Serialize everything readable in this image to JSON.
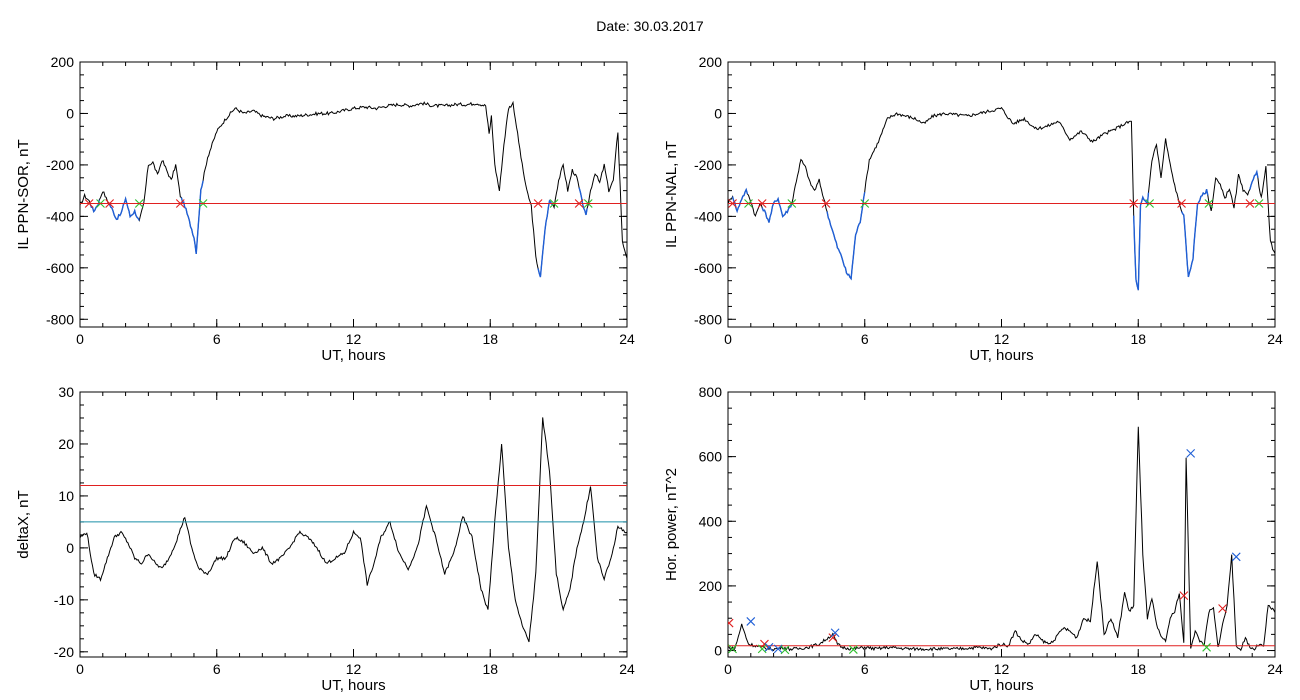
{
  "header": {
    "date_label": "Date:",
    "date_value": "30.03.2017"
  },
  "colors": {
    "axis": "#000000",
    "trace": "#000000",
    "event_trace": "#1f5fd6",
    "threshold_red": "#e02020",
    "threshold_cyan": "#1a8fa8",
    "marker_red": "#e02020",
    "marker_green": "#2fbf2f",
    "marker_blue": "#1f5fd6"
  },
  "chart_data": [
    {
      "id": "sor",
      "type": "line",
      "xlabel": "UT, hours",
      "ylabel": "IL PPN-SOR, nT",
      "xlim": [
        0,
        24
      ],
      "ylim": [
        -830,
        200
      ],
      "xticks": [
        0,
        6,
        12,
        18,
        24
      ],
      "yticks": [
        -800,
        -600,
        -400,
        -200,
        0,
        200
      ],
      "threshold": -350,
      "event_intervals": [
        [
          0.4,
          0.9
        ],
        [
          1.3,
          2.6
        ],
        [
          4.4,
          5.4
        ],
        [
          20.1,
          20.8
        ],
        [
          21.9,
          22.3
        ]
      ],
      "series": [
        {
          "x": [
            0,
            0.2,
            0.4,
            0.6,
            0.8,
            1,
            1.2,
            1.4,
            1.6,
            1.8,
            2,
            2.2,
            2.4,
            2.6,
            2.8,
            3,
            3.2,
            3.4,
            3.6,
            3.8,
            4,
            4.2,
            4.4,
            4.6,
            4.8,
            5,
            5.1,
            5.3,
            5.6,
            6,
            6.4,
            6.8,
            7.2,
            7.6,
            8,
            8.5,
            9,
            9.5,
            10,
            10.5,
            11,
            11.5,
            12,
            12.5,
            13,
            13.5,
            14,
            14.5,
            15,
            15.5,
            16,
            16.5,
            17,
            17.4,
            17.8,
            17.95,
            18.05,
            18.2,
            18.4,
            18.6,
            18.8,
            19,
            19.2,
            19.4,
            19.6,
            19.8,
            20,
            20.2,
            20.4,
            20.6,
            20.8,
            21,
            21.2,
            21.4,
            21.6,
            21.8,
            22,
            22.2,
            22.4,
            22.6,
            22.8,
            23,
            23.2,
            23.4,
            23.6,
            23.8,
            24
          ],
          "y": [
            -360,
            -320,
            -340,
            -380,
            -350,
            -300,
            -340,
            -370,
            -410,
            -390,
            -330,
            -400,
            -380,
            -420,
            -350,
            -200,
            -190,
            -240,
            -180,
            -220,
            -260,
            -200,
            -320,
            -360,
            -420,
            -480,
            -540,
            -300,
            -170,
            -70,
            -20,
            20,
            0,
            10,
            -10,
            -20,
            -10,
            -10,
            -5,
            0,
            0,
            10,
            20,
            25,
            20,
            30,
            35,
            30,
            40,
            30,
            30,
            35,
            35,
            40,
            30,
            -80,
            -10,
            -200,
            -300,
            -120,
            20,
            40,
            -80,
            -200,
            -300,
            -360,
            -560,
            -640,
            -450,
            -340,
            -360,
            -260,
            -200,
            -300,
            -220,
            -250,
            -330,
            -400,
            -300,
            -230,
            -270,
            -200,
            -300,
            -260,
            -70,
            -500,
            -560
          ]
        }
      ]
    },
    {
      "id": "nal",
      "type": "line",
      "xlabel": "UT, hours",
      "ylabel": "IL PPN-NAL, nT",
      "xlim": [
        0,
        24
      ],
      "ylim": [
        -830,
        200
      ],
      "xticks": [
        0,
        6,
        12,
        18,
        24
      ],
      "yticks": [
        -800,
        -600,
        -400,
        -200,
        0,
        200
      ],
      "threshold": -350,
      "event_intervals": [
        [
          0.2,
          0.9
        ],
        [
          1.5,
          2.8
        ],
        [
          4.3,
          6.0
        ],
        [
          17.8,
          18.5
        ],
        [
          19.9,
          21.1
        ],
        [
          22.9,
          23.3
        ]
      ],
      "series": [
        {
          "x": [
            0,
            0.2,
            0.4,
            0.6,
            0.8,
            1,
            1.2,
            1.4,
            1.6,
            1.8,
            2,
            2.2,
            2.4,
            2.6,
            2.8,
            3,
            3.2,
            3.4,
            3.6,
            3.8,
            4,
            4.2,
            4.4,
            4.6,
            4.8,
            5,
            5.2,
            5.4,
            5.6,
            5.8,
            6,
            6.2,
            6.6,
            7,
            7.4,
            7.8,
            8.2,
            8.6,
            9,
            9.5,
            10,
            10.5,
            11,
            11.5,
            12,
            12.5,
            13,
            13.5,
            14,
            14.5,
            15,
            15.5,
            16,
            16.5,
            17,
            17.4,
            17.7,
            17.8,
            17.9,
            18,
            18.1,
            18.2,
            18.4,
            18.6,
            18.8,
            19,
            19.2,
            19.4,
            19.6,
            19.8,
            20,
            20.2,
            20.4,
            20.6,
            20.8,
            21,
            21.2,
            21.4,
            21.6,
            21.8,
            22,
            22.2,
            22.4,
            22.6,
            22.8,
            23,
            23.2,
            23.4,
            23.6,
            23.8,
            24
          ],
          "y": [
            -350,
            -320,
            -380,
            -330,
            -300,
            -340,
            -400,
            -350,
            -380,
            -420,
            -350,
            -330,
            -400,
            -380,
            -350,
            -260,
            -180,
            -210,
            -270,
            -300,
            -260,
            -330,
            -400,
            -460,
            -520,
            -560,
            -620,
            -640,
            -470,
            -420,
            -300,
            -180,
            -110,
            -20,
            0,
            -10,
            -20,
            -40,
            -10,
            0,
            -5,
            -10,
            0,
            10,
            20,
            -40,
            -20,
            -60,
            -50,
            -30,
            -100,
            -70,
            -110,
            -80,
            -60,
            -40,
            -30,
            -400,
            -650,
            -690,
            -360,
            -330,
            -350,
            -180,
            -120,
            -250,
            -100,
            -200,
            -280,
            -350,
            -400,
            -640,
            -560,
            -350,
            -320,
            -300,
            -380,
            -250,
            -280,
            -330,
            -290,
            -370,
            -240,
            -300,
            -320,
            -260,
            -230,
            -330,
            -210,
            -500,
            -550
          ]
        }
      ]
    },
    {
      "id": "deltax",
      "type": "line",
      "xlabel": "UT, hours",
      "ylabel": "deltaX, nT",
      "xlim": [
        0,
        24
      ],
      "ylim": [
        -21,
        30
      ],
      "xticks": [
        0,
        6,
        12,
        18,
        24
      ],
      "yticks": [
        -20,
        -10,
        0,
        10,
        20,
        30
      ],
      "thresholds": [
        12,
        5
      ],
      "series": [
        {
          "x": [
            0,
            0.3,
            0.6,
            0.9,
            1.2,
            1.5,
            1.8,
            2.1,
            2.4,
            2.7,
            3,
            3.3,
            3.6,
            3.9,
            4.2,
            4.6,
            4.9,
            5.2,
            5.6,
            6,
            6.4,
            6.8,
            7.2,
            7.6,
            8,
            8.4,
            8.8,
            9.2,
            9.6,
            10,
            10.4,
            10.8,
            11.2,
            11.6,
            12,
            12.3,
            12.6,
            12.9,
            13.2,
            13.6,
            14,
            14.4,
            14.8,
            15.2,
            15.6,
            16,
            16.4,
            16.8,
            17.2,
            17.6,
            17.9,
            18.2,
            18.5,
            18.8,
            19.1,
            19.4,
            19.7,
            20,
            20.3,
            20.6,
            20.9,
            21.2,
            21.5,
            21.8,
            22.1,
            22.4,
            22.7,
            23,
            23.3,
            23.6,
            24
          ],
          "y": [
            2,
            3,
            -5,
            -6,
            -2,
            2,
            3,
            1,
            -2,
            -3,
            -1,
            -3,
            -4,
            -2,
            1,
            6,
            0,
            -4,
            -5,
            -2,
            -2,
            2,
            1,
            -1,
            0,
            -3,
            -2,
            0,
            3,
            2,
            0,
            -3,
            -2,
            -1,
            3,
            2,
            -7,
            -3,
            2,
            5,
            -1,
            -4,
            0,
            8,
            2,
            -5,
            -1,
            6,
            2,
            -8,
            -12,
            5,
            20,
            0,
            -10,
            -15,
            -18,
            -5,
            25,
            15,
            -5,
            -12,
            -8,
            0,
            5,
            12,
            -2,
            -6,
            -2,
            4,
            3
          ]
        }
      ]
    },
    {
      "id": "horpower",
      "type": "line",
      "xlabel": "UT, hours",
      "ylabel": "Hor. power, nT^2",
      "xlim": [
        0,
        24
      ],
      "ylim": [
        -20,
        800
      ],
      "xticks": [
        0,
        6,
        12,
        18,
        24
      ],
      "yticks": [
        0,
        200,
        400,
        600,
        800
      ],
      "threshold": 15,
      "series": [
        {
          "x": [
            0,
            0.3,
            0.6,
            0.9,
            1.2,
            1.5,
            1.8,
            2.1,
            2.4,
            2.7,
            3,
            3.5,
            4,
            4.4,
            4.6,
            4.8,
            5,
            5.5,
            6,
            6.5,
            7,
            8,
            9,
            10,
            11,
            11.5,
            12,
            12.3,
            12.6,
            12.9,
            13.2,
            13.5,
            13.8,
            14.1,
            14.4,
            14.7,
            15,
            15.3,
            15.6,
            15.9,
            16.2,
            16.5,
            16.8,
            17.1,
            17.4,
            17.6,
            17.8,
            18,
            18.2,
            18.4,
            18.6,
            18.8,
            19,
            19.2,
            19.4,
            19.6,
            19.8,
            20,
            20.1,
            20.3,
            20.5,
            20.7,
            20.9,
            21.1,
            21.3,
            21.5,
            21.7,
            21.9,
            22.1,
            22.3,
            22.5,
            22.7,
            22.9,
            23.1,
            23.3,
            23.5,
            23.7,
            24
          ],
          "y": [
            10,
            5,
            80,
            20,
            15,
            10,
            5,
            5,
            10,
            5,
            5,
            10,
            20,
            40,
            50,
            20,
            10,
            5,
            10,
            5,
            10,
            5,
            5,
            5,
            10,
            5,
            20,
            15,
            60,
            30,
            20,
            50,
            30,
            20,
            40,
            70,
            60,
            40,
            100,
            90,
            280,
            50,
            100,
            40,
            180,
            120,
            140,
            690,
            300,
            100,
            160,
            80,
            40,
            30,
            100,
            120,
            180,
            20,
            600,
            10,
            60,
            30,
            20,
            120,
            130,
            10,
            80,
            140,
            300,
            10,
            5,
            40,
            10,
            5,
            20,
            10,
            140,
            120
          ]
        }
      ],
      "markers": {
        "red": [
          [
            0.05,
            85
          ],
          [
            1.6,
            20
          ],
          [
            4.6,
            40
          ],
          [
            20.0,
            170
          ],
          [
            21.7,
            130
          ]
        ],
        "blue": [
          [
            1.0,
            90
          ],
          [
            1.8,
            10
          ],
          [
            2.2,
            5
          ],
          [
            4.7,
            55
          ],
          [
            20.3,
            610
          ],
          [
            22.3,
            290
          ]
        ],
        "green": [
          [
            0.2,
            5
          ],
          [
            1.5,
            5
          ],
          [
            2.5,
            2
          ],
          [
            5.5,
            3
          ],
          [
            21.0,
            10
          ]
        ]
      }
    }
  ]
}
